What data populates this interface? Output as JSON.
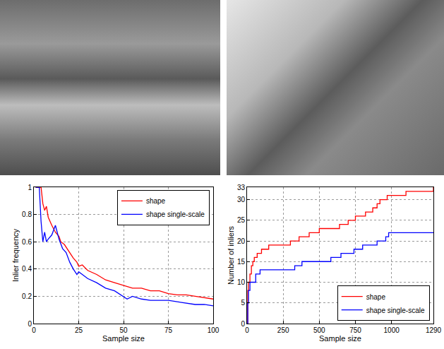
{
  "chart_data": [
    {
      "type": "line",
      "x_label": "Sample size",
      "y_label": "Inlier frequency",
      "xlim": [
        0,
        100
      ],
      "xticks": [
        0,
        25,
        50,
        75,
        100
      ],
      "ylim": [
        0,
        1
      ],
      "yticks": [
        0,
        0.2,
        0.4,
        0.6,
        0.8,
        1
      ],
      "grid": true,
      "legend": "top right",
      "line_style": "solid",
      "series": [
        {
          "name": "shape",
          "color": "#ff0000",
          "x": [
            1,
            4,
            5,
            6,
            7,
            8,
            10,
            12,
            14,
            15,
            17,
            20,
            22,
            24,
            25,
            27,
            30,
            35,
            40,
            45,
            50,
            55,
            60,
            65,
            70,
            75,
            80,
            85,
            90,
            95,
            100
          ],
          "values": [
            1,
            1,
            0.88,
            0.83,
            0.86,
            0.78,
            0.72,
            0.67,
            0.64,
            0.6,
            0.58,
            0.52,
            0.48,
            0.45,
            0.42,
            0.43,
            0.39,
            0.36,
            0.32,
            0.3,
            0.28,
            0.26,
            0.26,
            0.24,
            0.24,
            0.22,
            0.21,
            0.21,
            0.2,
            0.19,
            0.18
          ]
        },
        {
          "name": "shape single-scale",
          "color": "#0000ff",
          "x": [
            1,
            3,
            4,
            5,
            6,
            7,
            8,
            10,
            12,
            14,
            16,
            18,
            20,
            22,
            24,
            25,
            27,
            30,
            35,
            40,
            45,
            50,
            52,
            55,
            60,
            65,
            70,
            75,
            80,
            85,
            90,
            95,
            100
          ],
          "values": [
            1,
            1,
            0.75,
            0.6,
            0.67,
            0.6,
            0.62,
            0.65,
            0.72,
            0.62,
            0.55,
            0.52,
            0.45,
            0.4,
            0.36,
            0.38,
            0.36,
            0.33,
            0.3,
            0.26,
            0.24,
            0.2,
            0.18,
            0.2,
            0.18,
            0.17,
            0.17,
            0.17,
            0.16,
            0.15,
            0.14,
            0.14,
            0.13
          ]
        }
      ]
    },
    {
      "type": "line",
      "x_label": "Sample size",
      "y_label": "Number of inliers",
      "xlim": [
        0,
        1290
      ],
      "xticks": [
        0,
        250,
        500,
        750,
        1000,
        1290
      ],
      "ylim": [
        0,
        33
      ],
      "yticks": [
        0,
        5,
        10,
        15,
        20,
        25,
        30,
        33
      ],
      "grid": true,
      "legend": "bottom right",
      "line_style": "step",
      "series": [
        {
          "name": "shape",
          "color": "#ff0000",
          "x": [
            0,
            5,
            10,
            20,
            30,
            40,
            50,
            70,
            100,
            150,
            300,
            360,
            430,
            500,
            640,
            700,
            750,
            820,
            870,
            900,
            920,
            970,
            1100,
            1290
          ],
          "values": [
            0,
            8,
            10,
            12,
            14,
            15,
            16,
            17,
            18,
            19,
            20,
            21,
            22,
            23,
            24,
            25,
            26,
            27,
            28,
            29,
            30,
            31,
            32,
            33
          ]
        },
        {
          "name": "shape single-scale",
          "color": "#0000ff",
          "x": [
            0,
            5,
            10,
            20,
            60,
            90,
            330,
            380,
            580,
            650,
            740,
            800,
            900,
            960,
            980,
            1290
          ],
          "values": [
            0,
            5,
            8,
            10,
            12,
            13,
            14,
            15,
            16,
            17,
            18,
            19,
            20,
            21,
            22,
            22
          ]
        }
      ]
    }
  ]
}
